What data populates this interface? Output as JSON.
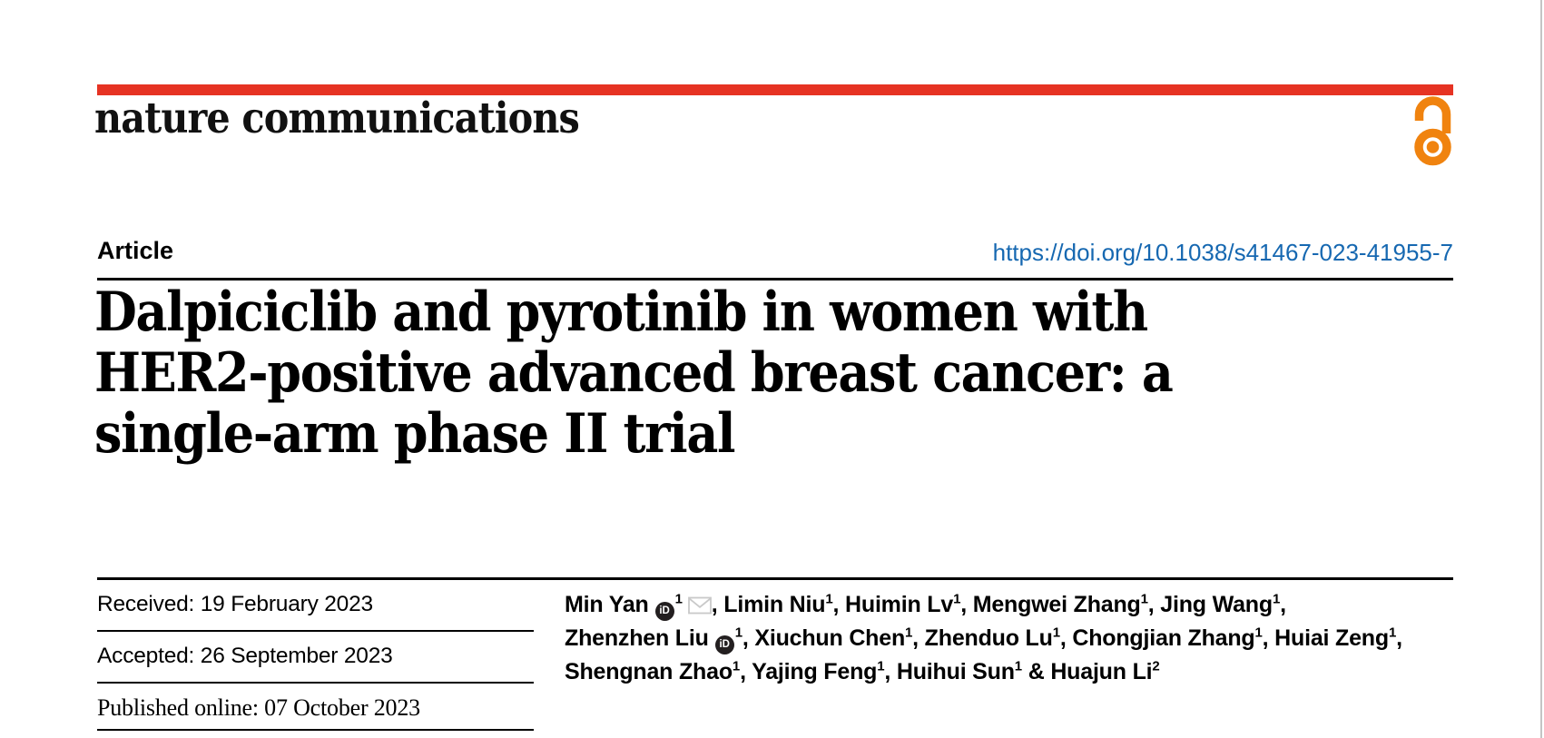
{
  "brand": {
    "journal": "nature communications",
    "red_bar_color": "#e63323",
    "open_access_color": "#f0830f",
    "open_access_icon": "open-access-padlock-icon"
  },
  "header": {
    "article_type": "Article",
    "doi": "https://doi.org/10.1038/s41467-023-41955-7",
    "doi_color": "#1668b1"
  },
  "title_lines": [
    "Dalpiciclib and pyrotinib in women with",
    "HER2-positive advanced breast cancer: a",
    "single-arm phase II trial"
  ],
  "dates": {
    "received": "Received: 19 February 2023",
    "accepted": "Accepted: 26 September 2023",
    "published": "Published online: 07 October 2023"
  },
  "authors": {
    "lines": [
      [
        {
          "name": "Min Yan",
          "orcid": true,
          "sup": "1",
          "email": true,
          "trail": ", "
        },
        {
          "name": "Limin Niu",
          "sup": "1",
          "trail": ", "
        },
        {
          "name": "Huimin Lv",
          "sup": "1",
          "trail": ", "
        },
        {
          "name": "Mengwei Zhang",
          "sup": "1",
          "trail": ", "
        },
        {
          "name": "Jing Wang",
          "sup": "1",
          "trail": ","
        }
      ],
      [
        {
          "name": "Zhenzhen Liu",
          "orcid": true,
          "sup": "1",
          "trail": ", "
        },
        {
          "name": "Xiuchun Chen",
          "sup": "1",
          "trail": ", "
        },
        {
          "name": "Zhenduo Lu",
          "sup": "1",
          "trail": ", "
        },
        {
          "name": "Chongjian Zhang",
          "sup": "1",
          "trail": ", "
        },
        {
          "name": "Huiai Zeng",
          "sup": "1",
          "trail": ","
        }
      ],
      [
        {
          "name": "Shengnan Zhao",
          "sup": "1",
          "trail": ", "
        },
        {
          "name": "Yajing Feng",
          "sup": "1",
          "trail": ", "
        },
        {
          "name": "Huihui Sun",
          "sup": "1",
          "trail": " & "
        },
        {
          "name": "Huajun Li",
          "sup": "2",
          "trail": ""
        }
      ]
    ]
  },
  "icons": {
    "orcid": "orcid-id-icon",
    "email": "email-envelope-icon",
    "open_access": "open-access-padlock-icon"
  }
}
